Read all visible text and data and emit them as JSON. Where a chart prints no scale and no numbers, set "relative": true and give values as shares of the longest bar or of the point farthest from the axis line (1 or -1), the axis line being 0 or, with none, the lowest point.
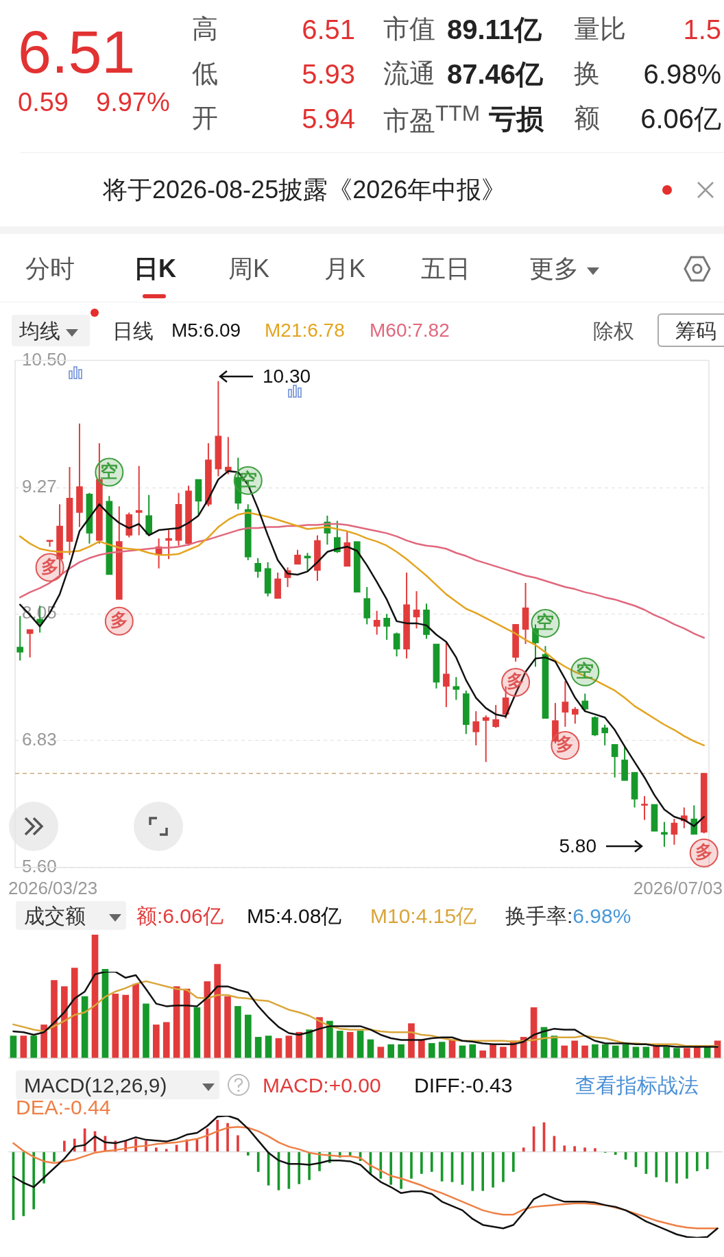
{
  "chart_data": [
    {
      "type": "other",
      "annotations": [
        "6.51",
        "0.59",
        "9.97%",
        "高",
        "6.51",
        "低",
        "5.93",
        "开",
        "5.94",
        "市值",
        "89.11亿",
        "流通",
        "87.46亿",
        "市盈$^{TTM}$",
        "亏损",
        "量比",
        "1.5",
        "换",
        "6.98%",
        "额",
        "6.06亿",
        "将于2026-08-25披露《2026年中报》",
        "分时",
        "日K",
        "周K",
        "月K",
        "五日",
        "更多"
      ]
    },
    {
      "type": "candlestick",
      "categories": [
        null,
        null,
        null,
        null,
        null,
        null,
        null,
        null,
        null,
        null,
        null,
        null,
        null,
        null,
        null,
        null,
        null,
        null,
        null,
        null,
        null,
        null,
        null,
        null,
        null,
        null,
        null,
        null,
        null,
        null,
        null,
        null,
        null,
        null,
        null,
        null,
        null,
        null,
        null,
        null,
        null,
        null,
        null,
        null,
        null,
        null,
        null,
        null,
        null,
        null,
        null,
        null,
        null,
        null,
        null,
        null,
        null,
        null,
        null,
        null,
        null,
        null,
        null,
        null,
        null,
        null,
        null,
        null,
        null,
        null
      ],
      "ohlc": [
        [
          7.73,
          8.03,
          7.6,
          7.68
        ],
        [
          7.86,
          7.9,
          7.63,
          7.9
        ],
        [
          8.0,
          8.13,
          7.87,
          7.96
        ],
        [
          8.75,
          8.76,
          8.7,
          8.76
        ],
        [
          8.58,
          9.11,
          8.42,
          8.9
        ],
        [
          8.75,
          9.47,
          8.62,
          9.17
        ],
        [
          9.03,
          9.89,
          8.89,
          9.28
        ],
        [
          9.21,
          9.22,
          8.73,
          8.83
        ],
        [
          8.76,
          9.7,
          8.73,
          9.35
        ],
        [
          9.14,
          9.19,
          8.43,
          8.43
        ],
        [
          8.19,
          9.09,
          8.19,
          8.75
        ],
        [
          8.81,
          9.03,
          8.79,
          9.01
        ],
        [
          9.03,
          9.48,
          8.81,
          9.05
        ],
        [
          9.0,
          9.2,
          8.81,
          8.82
        ],
        [
          8.62,
          8.78,
          8.49,
          8.7
        ],
        [
          8.76,
          8.86,
          8.58,
          8.78
        ],
        [
          8.76,
          9.22,
          8.71,
          9.11
        ],
        [
          8.73,
          9.29,
          8.71,
          9.24
        ],
        [
          9.35,
          9.35,
          9.01,
          9.14
        ],
        [
          9.11,
          9.7,
          9.09,
          9.54
        ],
        [
          9.45,
          10.3,
          9.38,
          9.77
        ],
        [
          9.43,
          9.76,
          9.4,
          9.47
        ],
        [
          9.37,
          9.56,
          9.06,
          9.12
        ],
        [
          9.06,
          9.11,
          8.57,
          8.6
        ],
        [
          8.54,
          8.59,
          8.4,
          8.46
        ],
        [
          8.49,
          8.55,
          8.22,
          8.25
        ],
        [
          8.2,
          8.45,
          8.2,
          8.39
        ],
        [
          8.4,
          8.5,
          8.31,
          8.47
        ],
        [
          8.53,
          8.67,
          8.53,
          8.62
        ],
        [
          8.61,
          8.64,
          8.47,
          8.59
        ],
        [
          8.47,
          8.81,
          8.37,
          8.76
        ],
        [
          8.94,
          9.0,
          8.72,
          8.83
        ],
        [
          8.79,
          8.95,
          8.64,
          8.65
        ],
        [
          8.51,
          8.85,
          8.51,
          8.74
        ],
        [
          8.75,
          8.75,
          8.26,
          8.26
        ],
        [
          8.2,
          8.31,
          7.95,
          8.01
        ],
        [
          7.93,
          8.08,
          7.85,
          7.99
        ],
        [
          8.01,
          8.05,
          7.8,
          7.93
        ],
        [
          7.86,
          7.87,
          7.64,
          7.71
        ],
        [
          7.71,
          8.45,
          7.62,
          8.14
        ],
        [
          8.02,
          8.27,
          7.91,
          8.09
        ],
        [
          8.09,
          8.15,
          7.81,
          7.85
        ],
        [
          7.76,
          7.76,
          7.33,
          7.39
        ],
        [
          7.35,
          7.77,
          7.15,
          7.47
        ],
        [
          7.35,
          7.44,
          7.22,
          7.32
        ],
        [
          7.28,
          7.31,
          6.89,
          6.98
        ],
        [
          6.91,
          7.11,
          6.78,
          7.01
        ],
        [
          7.02,
          7.07,
          6.62,
          7.05
        ],
        [
          6.96,
          7.17,
          6.95,
          7.03
        ],
        [
          7.08,
          7.35,
          7.04,
          7.24
        ],
        [
          7.63,
          7.95,
          7.59,
          7.95
        ],
        [
          7.9,
          8.35,
          7.76,
          8.11
        ],
        [
          7.91,
          7.95,
          7.54,
          7.77
        ],
        [
          7.66,
          7.74,
          7.04,
          7.04
        ],
        [
          6.82,
          7.19,
          6.8,
          7.02
        ],
        [
          7.1,
          7.4,
          6.96,
          7.2
        ],
        [
          7.08,
          7.15,
          6.99,
          7.13
        ],
        [
          7.21,
          7.28,
          7.11,
          7.13
        ],
        [
          7.05,
          7.06,
          6.87,
          6.88
        ],
        [
          6.95,
          6.98,
          6.78,
          6.9
        ],
        [
          6.79,
          6.79,
          6.47,
          6.67
        ],
        [
          6.64,
          6.78,
          6.44,
          6.44
        ],
        [
          6.52,
          6.52,
          6.18,
          6.26
        ],
        [
          6.2,
          6.29,
          6.06,
          6.21
        ],
        [
          6.21,
          6.21,
          5.95,
          5.95
        ],
        [
          5.94,
          6.04,
          5.8,
          5.92
        ],
        [
          5.92,
          6.07,
          5.82,
          6.03
        ],
        [
          6.05,
          6.18,
          5.98,
          6.1
        ],
        [
          6.07,
          6.2,
          5.92,
          5.92
        ],
        [
          5.94,
          6.51,
          5.93,
          6.51
        ]
      ],
      "colors": [
        "#16992a",
        "#e23b3b",
        "#16992a",
        "#e23b3b",
        "#e23b3b",
        "#e23b3b",
        "#e23b3b",
        "#16992a",
        "#e23b3b",
        "#16992a",
        "#e23b3b",
        "#e23b3b",
        "#e23b3b",
        "#16992a",
        "#e23b3b",
        "#e23b3b",
        "#e23b3b",
        "#e23b3b",
        "#16992a",
        "#e23b3b",
        "#e23b3b",
        "#e23b3b",
        "#16992a",
        "#16992a",
        "#16992a",
        "#16992a",
        "#e23b3b",
        "#e23b3b",
        "#e23b3b",
        "#16992a",
        "#e23b3b",
        "#16992a",
        "#16992a",
        "#e23b3b",
        "#16992a",
        "#16992a",
        "#e23b3b",
        "#16992a",
        "#16992a",
        "#e23b3b",
        "#e23b3b",
        "#16992a",
        "#16992a",
        "#e23b3b",
        "#16992a",
        "#16992a",
        "#e23b3b",
        "#e23b3b",
        "#e23b3b",
        "#e23b3b",
        "#e23b3b",
        "#e23b3b",
        "#16992a",
        "#16992a",
        "#e23b3b",
        "#e23b3b",
        "#e23b3b",
        "#16992a",
        "#16992a",
        "#16992a",
        "#16992a",
        "#16992a",
        "#16992a",
        "#e23b3b",
        "#16992a",
        "#16992a",
        "#e23b3b",
        "#e23b3b",
        "#16992a",
        "#e23b3b"
      ],
      "ylim": [
        5.6,
        10.5
      ],
      "yticks": [
        {
          "value": 10.5,
          "label": "10.50"
        },
        9.27,
        8.05,
        6.83,
        {
          "value": 5.6,
          "label": "5.60"
        }
      ],
      "grid": "y",
      "legend": "top",
      "ref_lines": [
        {
          "axis": "y",
          "value": 6.51,
          "color": "#c9a97c",
          "line_style": "dashed"
        }
      ],
      "annotations": [
        "均线",
        "日线",
        "除权",
        "筹码",
        "2026/03/23",
        "2026/07/03",
        "10.30",
        "5.80"
      ],
      "series": [
        {
          "name": "M5:6.09",
          "type": "line",
          "color": "#111111",
          "values": [
            8.14,
            8.04,
            7.93,
            8.06,
            8.24,
            8.52,
            8.85,
            8.98,
            9.11,
            9.01,
            8.93,
            8.88,
            8.92,
            8.81,
            8.86,
            8.87,
            8.88,
            8.93,
            9.0,
            9.16,
            9.35,
            9.43,
            9.42,
            9.3,
            9.07,
            8.81,
            8.57,
            8.44,
            8.43,
            8.46,
            8.55,
            8.65,
            8.68,
            8.7,
            8.66,
            8.52,
            8.36,
            8.19,
            7.98,
            7.96,
            7.96,
            7.94,
            7.85,
            7.78,
            7.63,
            7.41,
            7.24,
            7.14,
            7.08,
            7.06,
            7.28,
            7.49,
            7.62,
            7.63,
            7.59,
            7.42,
            7.24,
            7.11,
            7.08,
            7.05,
            6.93,
            6.77,
            6.62,
            6.47,
            6.3,
            6.16,
            6.09,
            6.06,
            6.0,
            6.09
          ]
        },
        {
          "name": "M21:6.78",
          "type": "line",
          "color": "#e3a420",
          "values": [
            8.8,
            8.73,
            8.68,
            8.66,
            8.65,
            8.65,
            8.66,
            8.7,
            8.75,
            8.72,
            8.69,
            8.68,
            8.67,
            8.64,
            8.62,
            8.62,
            8.63,
            8.67,
            8.71,
            8.79,
            8.89,
            8.96,
            9.01,
            9.03,
            9.01,
            8.99,
            8.96,
            8.93,
            8.9,
            8.87,
            8.88,
            8.89,
            8.87,
            8.85,
            8.82,
            8.78,
            8.75,
            8.71,
            8.65,
            8.58,
            8.5,
            8.42,
            8.33,
            8.24,
            8.17,
            8.1,
            8.06,
            8.01,
            7.96,
            7.91,
            7.86,
            7.8,
            7.75,
            7.68,
            7.6,
            7.54,
            7.49,
            7.45,
            7.41,
            7.36,
            7.31,
            7.24,
            7.16,
            7.1,
            7.04,
            6.98,
            6.93,
            6.87,
            6.82,
            6.78
          ]
        },
        {
          "name": "M60:7.82",
          "type": "line",
          "color": "#e0677c",
          "values": [
            8.21,
            8.26,
            8.3,
            8.35,
            8.42,
            8.49,
            8.55,
            8.59,
            8.62,
            8.64,
            8.65,
            8.66,
            8.67,
            8.68,
            8.69,
            8.69,
            8.7,
            8.72,
            8.75,
            8.77,
            8.8,
            8.83,
            8.86,
            8.88,
            8.88,
            8.89,
            8.89,
            8.9,
            8.9,
            8.91,
            8.91,
            8.92,
            8.92,
            8.91,
            8.89,
            8.87,
            8.85,
            8.83,
            8.8,
            8.76,
            8.73,
            8.71,
            8.7,
            8.68,
            8.64,
            8.61,
            8.57,
            8.54,
            8.51,
            8.48,
            8.45,
            8.42,
            8.4,
            8.37,
            8.34,
            8.31,
            8.29,
            8.26,
            8.24,
            8.21,
            8.19,
            8.16,
            8.13,
            8.09,
            8.04,
            8.0,
            7.95,
            7.91,
            7.86,
            7.82
          ]
        },
        {
          "name": "空",
          "type": "scatter",
          "color": "#3f9f3f",
          "values": [
            null,
            null,
            null,
            null,
            null,
            null,
            null,
            null,
            null,
            9.42,
            null,
            null,
            null,
            null,
            null,
            null,
            null,
            null,
            null,
            null,
            null,
            null,
            null,
            9.34,
            null,
            null,
            null,
            null,
            null,
            null,
            null,
            null,
            null,
            null,
            null,
            null,
            null,
            null,
            null,
            null,
            null,
            null,
            null,
            null,
            null,
            null,
            null,
            null,
            null,
            null,
            null,
            null,
            null,
            7.96,
            null,
            null,
            null,
            7.49,
            null,
            null,
            null,
            null,
            null,
            null,
            null,
            null,
            null,
            null,
            null,
            null
          ]
        },
        {
          "name": "多",
          "type": "scatter",
          "color": "#e05555",
          "values": [
            null,
            null,
            null,
            8.5,
            null,
            null,
            null,
            null,
            null,
            null,
            7.98,
            null,
            null,
            null,
            null,
            null,
            null,
            null,
            null,
            null,
            null,
            null,
            null,
            null,
            null,
            null,
            null,
            null,
            null,
            null,
            null,
            null,
            null,
            null,
            null,
            null,
            null,
            null,
            null,
            null,
            null,
            null,
            null,
            null,
            null,
            null,
            null,
            null,
            null,
            null,
            7.39,
            null,
            null,
            null,
            null,
            6.78,
            null,
            null,
            null,
            null,
            null,
            null,
            null,
            null,
            null,
            null,
            null,
            null,
            null,
            5.74
          ]
        }
      ]
    },
    {
      "type": "bar",
      "title": "成交额",
      "relative": true,
      "legend": "top left",
      "categories": [
        null,
        null,
        null,
        null,
        null,
        null,
        null,
        null,
        null,
        null,
        null,
        null,
        null,
        null,
        null,
        null,
        null,
        null,
        null,
        null,
        null,
        null,
        null,
        null,
        null,
        null,
        null,
        null,
        null,
        null,
        null,
        null,
        null,
        null,
        null,
        null,
        null,
        null,
        null,
        null,
        null,
        null,
        null,
        null,
        null,
        null,
        null,
        null,
        null,
        null,
        null,
        null,
        null,
        null,
        null,
        null,
        null,
        null,
        null,
        null,
        null,
        null,
        null,
        null,
        null,
        null,
        null,
        null,
        null,
        null
      ],
      "annotations": [
        "换手率:6.98%"
      ],
      "series": [
        {
          "name": "额:6.06亿",
          "color": "#e23b3b",
          "colors": [
            "#16992a",
            "#e23b3b",
            "#16992a",
            "#e23b3b",
            "#e23b3b",
            "#e23b3b",
            "#e23b3b",
            "#16992a",
            "#e23b3b",
            "#16992a",
            "#e23b3b",
            "#e23b3b",
            "#e23b3b",
            "#16992a",
            "#e23b3b",
            "#e23b3b",
            "#e23b3b",
            "#e23b3b",
            "#16992a",
            "#e23b3b",
            "#e23b3b",
            "#e23b3b",
            "#16992a",
            "#16992a",
            "#16992a",
            "#16992a",
            "#e23b3b",
            "#e23b3b",
            "#e23b3b",
            "#16992a",
            "#e23b3b",
            "#16992a",
            "#16992a",
            "#e23b3b",
            "#16992a",
            "#16992a",
            "#e23b3b",
            "#16992a",
            "#16992a",
            "#e23b3b",
            "#e23b3b",
            "#16992a",
            "#16992a",
            "#e23b3b",
            "#16992a",
            "#16992a",
            "#e23b3b",
            "#e23b3b",
            "#e23b3b",
            "#e23b3b",
            "#e23b3b",
            "#e23b3b",
            "#16992a",
            "#16992a",
            "#e23b3b",
            "#e23b3b",
            "#e23b3b",
            "#16992a",
            "#16992a",
            "#16992a",
            "#16992a",
            "#16992a",
            "#16992a",
            "#e23b3b",
            "#16992a",
            "#16992a",
            "#e23b3b",
            "#e23b3b",
            "#16992a",
            "#e23b3b"
          ],
          "values": [
            0.18,
            0.18,
            0.18,
            0.27,
            0.63,
            0.58,
            0.73,
            0.5,
            1,
            0.72,
            0.52,
            0.51,
            0.6,
            0.44,
            0.27,
            0.29,
            0.58,
            0.56,
            0.41,
            0.62,
            0.76,
            0.5,
            0.42,
            0.35,
            0.17,
            0.18,
            0.16,
            0.18,
            0.21,
            0.23,
            0.33,
            0.3,
            0.22,
            0.21,
            0.22,
            0.15,
            0.09,
            0.11,
            0.11,
            0.28,
            0.15,
            0.12,
            0.13,
            0.15,
            0.1,
            0.11,
            0.06,
            0.11,
            0.09,
            0.14,
            0.17,
            0.41,
            0.25,
            0.18,
            0.1,
            0.14,
            0.1,
            0.11,
            0.11,
            0.1,
            0.11,
            0.09,
            0.09,
            0.11,
            0.09,
            0.08,
            0.08,
            0.09,
            0.09,
            0.14
          ]
        }
      ]
    },
    {
      "type": "line",
      "relative": true,
      "legend": "top left",
      "categories": [
        null,
        null,
        null,
        null,
        null,
        null,
        null,
        null,
        null,
        null,
        null,
        null,
        null,
        null,
        null,
        null,
        null,
        null,
        null,
        null,
        null,
        null,
        null,
        null,
        null,
        null,
        null,
        null,
        null,
        null,
        null,
        null,
        null,
        null,
        null,
        null,
        null,
        null,
        null,
        null,
        null,
        null,
        null,
        null,
        null,
        null,
        null,
        null,
        null,
        null,
        null,
        null,
        null,
        null,
        null,
        null,
        null,
        null,
        null,
        null,
        null,
        null,
        null,
        null,
        null,
        null,
        null,
        null,
        null,
        null
      ],
      "series": [
        {
          "name": "M5:4.08亿",
          "color": "#111111",
          "values": [
            0.31,
            0.3,
            0.27,
            0.3,
            0.41,
            0.53,
            0.69,
            0.77,
            0.97,
            1,
            1,
            0.93,
            0.96,
            0.8,
            0.63,
            0.6,
            0.61,
            0.61,
            0.6,
            0.7,
            0.83,
            0.83,
            0.79,
            0.76,
            0.6,
            0.47,
            0.36,
            0.29,
            0.27,
            0.3,
            0.34,
            0.37,
            0.37,
            0.37,
            0.37,
            0.33,
            0.27,
            0.23,
            0.21,
            0.21,
            0.21,
            0.23,
            0.24,
            0.24,
            0.2,
            0.19,
            0.17,
            0.16,
            0.16,
            0.16,
            0.19,
            0.27,
            0.31,
            0.34,
            0.33,
            0.33,
            0.26,
            0.2,
            0.17,
            0.17,
            0.17,
            0.16,
            0.16,
            0.14,
            0.14,
            0.13,
            0.13,
            0.13,
            0.13,
            0.13
          ]
        },
        {
          "name": "M10:4.15亿",
          "color": "#d9a53a",
          "values": [
            0.39,
            0.36,
            0.33,
            0.31,
            0.37,
            0.43,
            0.5,
            0.53,
            0.61,
            0.71,
            0.77,
            0.81,
            0.86,
            0.89,
            0.86,
            0.83,
            0.8,
            0.79,
            0.7,
            0.69,
            0.73,
            0.73,
            0.7,
            0.69,
            0.67,
            0.66,
            0.61,
            0.56,
            0.53,
            0.49,
            0.43,
            0.37,
            0.34,
            0.33,
            0.33,
            0.33,
            0.31,
            0.3,
            0.3,
            0.3,
            0.27,
            0.26,
            0.23,
            0.21,
            0.2,
            0.2,
            0.2,
            0.2,
            0.2,
            0.19,
            0.2,
            0.21,
            0.23,
            0.24,
            0.24,
            0.24,
            0.26,
            0.24,
            0.23,
            0.2,
            0.17,
            0.17,
            0.16,
            0.16,
            0.16,
            0.16,
            0.14,
            0.14,
            0.14,
            0.14
          ]
        }
      ]
    },
    {
      "type": "bar",
      "title": "MACD(12,26,9)",
      "relative": true,
      "legend": "top left",
      "categories": [
        null,
        null,
        null,
        null,
        null,
        null,
        null,
        null,
        null,
        null,
        null,
        null,
        null,
        null,
        null,
        null,
        null,
        null,
        null,
        null,
        null,
        null,
        null,
        null,
        null,
        null,
        null,
        null,
        null,
        null,
        null,
        null,
        null,
        null,
        null,
        null,
        null,
        null,
        null,
        null,
        null,
        null,
        null,
        null,
        null,
        null,
        null,
        null,
        null,
        null,
        null,
        null,
        null,
        null,
        null,
        null,
        null,
        null,
        null,
        null,
        null,
        null,
        null,
        null,
        null,
        null,
        null,
        null,
        null,
        null
      ],
      "annotations": [
        "查看指标战法"
      ],
      "series": [
        {
          "name": "MACD:+0.00",
          "color": "#e23b3b",
          "colors": [
            "#16992a",
            "#16992a",
            "#16992a",
            "#16992a",
            "#16992a",
            "#e23b3b",
            "#e23b3b",
            "#e23b3b",
            "#e23b3b",
            "#e23b3b",
            "#e23b3b",
            "#e23b3b",
            "#e23b3b",
            "#e23b3b",
            "#e23b3b",
            "#e23b3b",
            "#e23b3b",
            "#e23b3b",
            "#e23b3b",
            "#e23b3b",
            "#e23b3b",
            "#e23b3b",
            "#e23b3b",
            "#16992a",
            "#16992a",
            "#16992a",
            "#16992a",
            "#16992a",
            "#16992a",
            "#16992a",
            "#16992a",
            "#16992a",
            "#16992a",
            "#16992a",
            "#16992a",
            "#16992a",
            "#16992a",
            "#16992a",
            "#16992a",
            "#16992a",
            "#16992a",
            "#16992a",
            "#16992a",
            "#16992a",
            "#16992a",
            "#16992a",
            "#16992a",
            "#16992a",
            "#16992a",
            "#16992a",
            "#e23b3b",
            "#e23b3b",
            "#e23b3b",
            "#e23b3b",
            "#e23b3b",
            "#e23b3b",
            "#e23b3b",
            "#e23b3b",
            "#16992a",
            "#16992a",
            "#16992a",
            "#16992a",
            "#16992a",
            "#16992a",
            "#16992a",
            "#16992a",
            "#16992a",
            "#16992a",
            "#16992a",
            "#e23b3b"
          ],
          "values": [
            -1,
            -0.94,
            -0.84,
            -0.46,
            -0.14,
            0.16,
            0.19,
            0.34,
            0.3,
            0.23,
            0.16,
            0.16,
            0.19,
            0.16,
            0.06,
            0.04,
            0.1,
            0.18,
            0.18,
            0.34,
            0.47,
            0.42,
            0.24,
            -0.05,
            -0.29,
            -0.49,
            -0.56,
            -0.54,
            -0.47,
            -0.41,
            -0.28,
            -0.16,
            -0.08,
            -0.06,
            -0.13,
            -0.32,
            -0.39,
            -0.48,
            -0.54,
            -0.39,
            -0.32,
            -0.29,
            -0.43,
            -0.44,
            -0.48,
            -0.57,
            -0.57,
            -0.52,
            -0.44,
            -0.29,
            0.06,
            0.37,
            0.43,
            0.23,
            0.09,
            0.08,
            0.06,
            0.05,
            -0.01,
            -0.04,
            -0.11,
            -0.22,
            -0.32,
            -0.37,
            -0.44,
            -0.46,
            -0.39,
            -0.28,
            -0.25,
            0
          ]
        }
      ]
    },
    {
      "type": "line",
      "relative": true,
      "legend": "top left",
      "categories": [
        null,
        null,
        null,
        null,
        null,
        null,
        null,
        null,
        null,
        null,
        null,
        null,
        null,
        null,
        null,
        null,
        null,
        null,
        null,
        null,
        null,
        null,
        null,
        null,
        null,
        null,
        null,
        null,
        null,
        null,
        null,
        null,
        null,
        null,
        null,
        null,
        null,
        null,
        null,
        null,
        null,
        null,
        null,
        null,
        null,
        null,
        null,
        null,
        null,
        null,
        null,
        null,
        null,
        null,
        null,
        null,
        null,
        null,
        null,
        null,
        null,
        null,
        null,
        null,
        null,
        null,
        null,
        null,
        null,
        null
      ],
      "series": [
        {
          "name": "DIFF:-0.43",
          "color": "#111111",
          "values": [
            -0.29,
            -0.36,
            -0.41,
            -0.3,
            -0.19,
            -0.08,
            0.06,
            0.08,
            0.18,
            0.11,
            0.1,
            0.13,
            0.17,
            0.14,
            0.13,
            0.12,
            0.15,
            0.2,
            0.22,
            0.3,
            0.41,
            0.42,
            0.38,
            0.27,
            0.13,
            -0.01,
            -0.1,
            -0.14,
            -0.14,
            -0.15,
            -0.13,
            -0.1,
            -0.1,
            -0.11,
            -0.15,
            -0.26,
            -0.35,
            -0.41,
            -0.48,
            -0.46,
            -0.46,
            -0.49,
            -0.58,
            -0.63,
            -0.68,
            -0.78,
            -0.85,
            -0.87,
            -0.89,
            -0.85,
            -0.71,
            -0.55,
            -0.49,
            -0.54,
            -0.58,
            -0.58,
            -0.58,
            -0.59,
            -0.62,
            -0.64,
            -0.68,
            -0.74,
            -0.81,
            -0.86,
            -0.91,
            -0.96,
            -0.99,
            -1,
            -0.99,
            -0.89
          ]
        },
        {
          "name": "DEA:-0.44",
          "color": "#ee7f45",
          "values": [
            0.1,
            0.01,
            -0.06,
            -0.11,
            -0.13,
            -0.11,
            -0.09,
            -0.05,
            -0.01,
            0.01,
            0.02,
            0.04,
            0.06,
            0.07,
            0.09,
            0.1,
            0.11,
            0.13,
            0.15,
            0.19,
            0.24,
            0.28,
            0.29,
            0.28,
            0.24,
            0.18,
            0.11,
            0.06,
            0.03,
            -0.01,
            -0.03,
            -0.04,
            -0.05,
            -0.05,
            -0.07,
            -0.16,
            -0.22,
            -0.28,
            -0.31,
            -0.35,
            -0.39,
            -0.44,
            -0.48,
            -0.53,
            -0.58,
            -0.63,
            -0.68,
            -0.71,
            -0.73,
            -0.73,
            -0.67,
            -0.64,
            -0.63,
            -0.62,
            -0.61,
            -0.6,
            -0.6,
            -0.61,
            -0.62,
            -0.65,
            -0.68,
            -0.72,
            -0.76,
            -0.8,
            -0.83,
            -0.86,
            -0.88,
            -0.89,
            -0.89,
            -0.89
          ]
        }
      ]
    }
  ]
}
